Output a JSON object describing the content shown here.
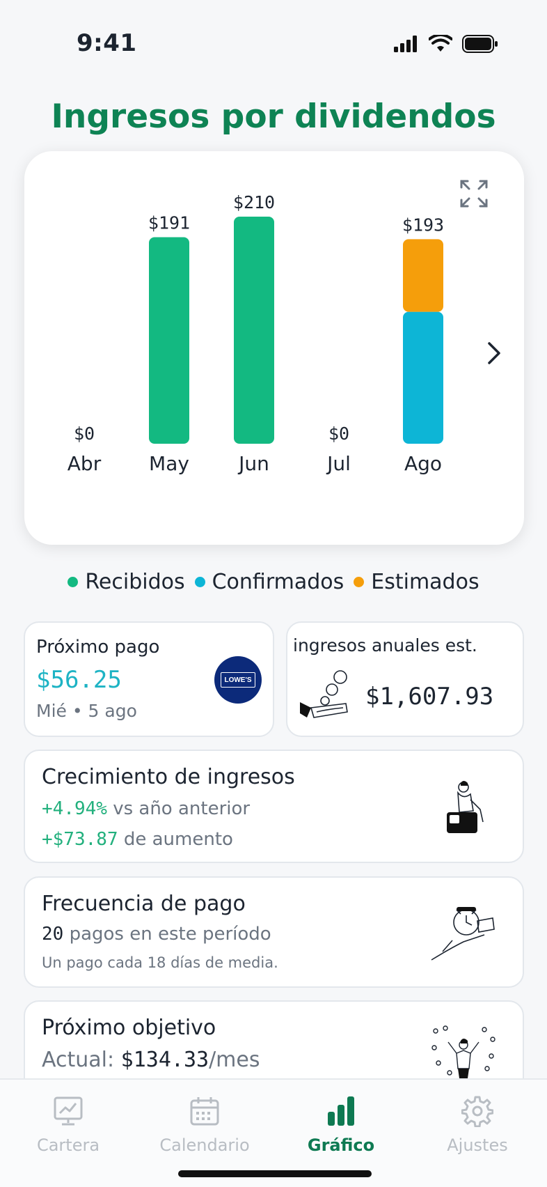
{
  "status": {
    "time": "9:41"
  },
  "title": "Ingresos por dividendos",
  "chart_data": {
    "type": "bar",
    "categories": [
      "Abr",
      "May",
      "Jun",
      "Jul",
      "Ago"
    ],
    "value_labels": [
      "$0",
      "$191",
      "$210",
      "$0",
      "$193"
    ],
    "series": [
      {
        "name": "Recibidos",
        "values": [
          0,
          191,
          210,
          0,
          0
        ]
      },
      {
        "name": "Confirmados",
        "values": [
          0,
          0,
          0,
          0,
          122
        ]
      },
      {
        "name": "Estimados",
        "values": [
          0,
          0,
          0,
          0,
          71
        ]
      }
    ],
    "colors": {
      "Recibidos": "#13b981",
      "Confirmados": "#0db5d6",
      "Estimados": "#f59e0b"
    },
    "ylim": [
      0,
      210
    ]
  },
  "legend": [
    {
      "label": "Recibidos",
      "color": "#13b981"
    },
    {
      "label": "Confirmados",
      "color": "#0db5d6"
    },
    {
      "label": "Estimados",
      "color": "#f59e0b"
    }
  ],
  "next_payment": {
    "title": "Próximo pago",
    "amount": "$56.25",
    "date": "Mié • 5 ago",
    "logo_text": "LOWE'S"
  },
  "annual": {
    "title": "ingresos anuales est.",
    "amount": "$1,607.93"
  },
  "growth": {
    "title": "Crecimiento de ingresos",
    "percent": "+4.94%",
    "percent_suffix": "vs año anterior",
    "increase": "+$73.87",
    "increase_suffix": "de aumento"
  },
  "frequency": {
    "title": "Frecuencia de pago",
    "count": "20",
    "count_suffix": "pagos en este período",
    "note": "Un pago cada 18 días de media."
  },
  "goal": {
    "title": "Próximo objetivo",
    "current_label": "Actual:",
    "current_value": "$134.33",
    "current_unit": "/mes"
  },
  "tabs": [
    {
      "label": "Cartera",
      "icon": "portfolio-icon",
      "active": false
    },
    {
      "label": "Calendario",
      "icon": "calendar-icon",
      "active": false
    },
    {
      "label": "Gráfico",
      "icon": "bar-chart-icon",
      "active": true
    },
    {
      "label": "Ajustes",
      "icon": "gear-icon",
      "active": false
    }
  ],
  "accent_color": "#0e8354"
}
